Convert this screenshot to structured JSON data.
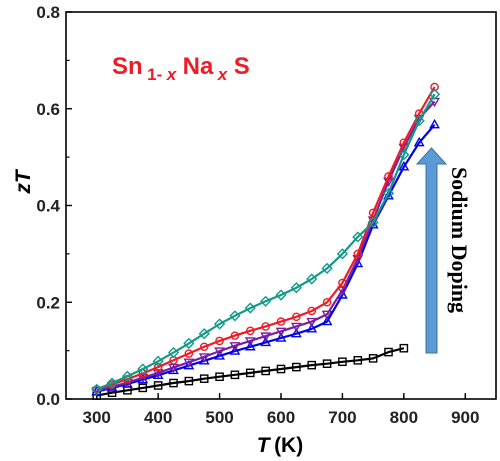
{
  "chart_data": {
    "type": "line",
    "title": "",
    "xlabel": {
      "symbol": "T",
      "unit": "(K)"
    },
    "ylabel": {
      "symbol": "zT"
    },
    "xlim": [
      250,
      950
    ],
    "ylim": [
      0,
      0.8
    ],
    "xticks": [
      "300",
      "400",
      "500",
      "600",
      "700",
      "800",
      "900"
    ],
    "yticks": [
      "0.0",
      "0.2",
      "0.4",
      "0.6",
      "0.8"
    ],
    "grid": false,
    "legend": "none",
    "annotation": {
      "formula": {
        "a": "Sn",
        "b": "1-",
        "c": "x",
        "d": "Na",
        "e": "x",
        "f": "S"
      },
      "arrow_label": "Sodium Doping",
      "arrow_color": "#5b9bd5"
    },
    "series": [
      {
        "color": "#000000",
        "marker": "square",
        "x": [
          300,
          325,
          350,
          375,
          400,
          425,
          450,
          475,
          500,
          525,
          550,
          575,
          600,
          625,
          650,
          675,
          700,
          725,
          750,
          775,
          800
        ],
        "y": [
          0.007,
          0.013,
          0.018,
          0.023,
          0.028,
          0.033,
          0.037,
          0.042,
          0.046,
          0.05,
          0.054,
          0.058,
          0.062,
          0.066,
          0.07,
          0.073,
          0.077,
          0.08,
          0.084,
          0.097,
          0.105
        ]
      },
      {
        "color": "#0000ee",
        "marker": "triangle-up",
        "x": [
          300,
          325,
          350,
          375,
          400,
          425,
          450,
          475,
          500,
          525,
          550,
          575,
          600,
          625,
          650,
          675,
          700,
          725,
          750,
          775,
          800,
          825,
          850
        ],
        "y": [
          0.015,
          0.023,
          0.031,
          0.04,
          0.049,
          0.059,
          0.069,
          0.079,
          0.089,
          0.099,
          0.108,
          0.117,
          0.126,
          0.135,
          0.145,
          0.16,
          0.215,
          0.28,
          0.36,
          0.42,
          0.48,
          0.53,
          0.567
        ]
      },
      {
        "color": "#7b1fa2",
        "marker": "triangle-down",
        "x": [
          300,
          325,
          350,
          375,
          400,
          425,
          450,
          475,
          500,
          525,
          550,
          575,
          600,
          625,
          650,
          675,
          700,
          725,
          750,
          775,
          800,
          825,
          850
        ],
        "y": [
          0.017,
          0.025,
          0.034,
          0.044,
          0.054,
          0.065,
          0.076,
          0.087,
          0.099,
          0.11,
          0.12,
          0.13,
          0.14,
          0.15,
          0.16,
          0.175,
          0.225,
          0.29,
          0.37,
          0.45,
          0.52,
          0.58,
          0.615
        ]
      },
      {
        "color": "#ee1c25",
        "marker": "circle",
        "x": [
          300,
          325,
          350,
          375,
          400,
          425,
          450,
          475,
          500,
          525,
          550,
          575,
          600,
          625,
          650,
          675,
          700,
          725,
          750,
          775,
          800,
          825,
          850
        ],
        "y": [
          0.02,
          0.03,
          0.041,
          0.053,
          0.066,
          0.08,
          0.094,
          0.108,
          0.12,
          0.131,
          0.141,
          0.15,
          0.16,
          0.17,
          0.182,
          0.2,
          0.24,
          0.3,
          0.385,
          0.46,
          0.53,
          0.59,
          0.645
        ]
      },
      {
        "color": "#119a8a",
        "marker": "diamond",
        "x": [
          300,
          325,
          350,
          375,
          400,
          425,
          450,
          475,
          500,
          525,
          550,
          575,
          600,
          625,
          650,
          675,
          700,
          725,
          750,
          775,
          800,
          825,
          850
        ],
        "y": [
          0.02,
          0.033,
          0.047,
          0.062,
          0.078,
          0.096,
          0.115,
          0.135,
          0.155,
          0.172,
          0.188,
          0.202,
          0.215,
          0.23,
          0.248,
          0.27,
          0.3,
          0.335,
          0.365,
          0.425,
          0.505,
          0.575,
          0.63
        ]
      }
    ]
  }
}
